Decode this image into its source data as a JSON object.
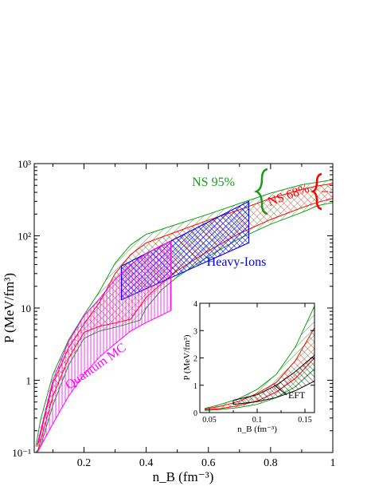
{
  "chart_data": [
    {
      "type": "area",
      "xlabel": "n_B (fm⁻³)",
      "ylabel": "P (MeV/fm³)",
      "x_scale": "linear",
      "y_scale": "log",
      "xlim": [
        0.04,
        1.0
      ],
      "ylim": [
        0.1,
        1000
      ],
      "x_ticks": [
        "0.2",
        "0.4",
        "0.6",
        "0.8",
        "1"
      ],
      "y_ticks": [
        "10⁻¹",
        "1",
        "10",
        "10²",
        "10³"
      ],
      "grid": false,
      "series": [
        {
          "name": "NS 95%",
          "color": "#1a9a1a",
          "hatch": "diagonal-up",
          "upper": [
            [
              0.045,
              0.12
            ],
            [
              0.06,
              0.28
            ],
            [
              0.1,
              1.2
            ],
            [
              0.15,
              3.6
            ],
            [
              0.2,
              8
            ],
            [
              0.25,
              17
            ],
            [
              0.3,
              42
            ],
            [
              0.35,
              75
            ],
            [
              0.4,
              105
            ],
            [
              0.5,
              145
            ],
            [
              0.6,
              200
            ],
            [
              0.7,
              280
            ],
            [
              0.8,
              390
            ],
            [
              0.9,
              510
            ],
            [
              0.95,
              550
            ],
            [
              1.0,
              600
            ]
          ],
          "lower": [
            [
              0.045,
              0.1
            ],
            [
              0.06,
              0.12
            ],
            [
              0.1,
              0.45
            ],
            [
              0.15,
              1.6
            ],
            [
              0.2,
              3.8
            ],
            [
              0.25,
              4.8
            ],
            [
              0.3,
              5.4
            ],
            [
              0.35,
              6.2
            ],
            [
              0.38,
              6.8
            ],
            [
              0.4,
              10
            ],
            [
              0.45,
              18
            ],
            [
              0.5,
              27
            ],
            [
              0.6,
              52
            ],
            [
              0.7,
              92
            ],
            [
              0.8,
              145
            ],
            [
              0.9,
              210
            ],
            [
              0.95,
              260
            ],
            [
              1.0,
              290
            ]
          ]
        },
        {
          "name": "NS 68%",
          "color": "#ff0000",
          "hatch": "diagonal-down",
          "upper": [
            [
              0.05,
              0.12
            ],
            [
              0.1,
              0.9
            ],
            [
              0.15,
              2.8
            ],
            [
              0.2,
              6
            ],
            [
              0.25,
              12
            ],
            [
              0.3,
              30
            ],
            [
              0.35,
              55
            ],
            [
              0.4,
              80
            ],
            [
              0.5,
              115
            ],
            [
              0.6,
              165
            ],
            [
              0.7,
              230
            ],
            [
              0.8,
              330
            ],
            [
              0.9,
              440
            ],
            [
              0.95,
              490
            ],
            [
              1.0,
              530
            ]
          ],
          "lower": [
            [
              0.05,
              0.1
            ],
            [
              0.1,
              0.6
            ],
            [
              0.15,
              2
            ],
            [
              0.2,
              4.6
            ],
            [
              0.25,
              5.6
            ],
            [
              0.3,
              6.2
            ],
            [
              0.35,
              7
            ],
            [
              0.4,
              14
            ],
            [
              0.45,
              22
            ],
            [
              0.5,
              33
            ],
            [
              0.6,
              62
            ],
            [
              0.7,
              108
            ],
            [
              0.8,
              168
            ],
            [
              0.9,
              245
            ],
            [
              0.95,
              290
            ],
            [
              1.0,
              330
            ]
          ]
        },
        {
          "name": "Heavy-Ions",
          "color": "#0000ee",
          "hatch": "crosshatch",
          "polygon": [
            [
              0.32,
              13
            ],
            [
              0.32,
              38
            ],
            [
              0.73,
              300
            ],
            [
              0.73,
              80
            ]
          ]
        },
        {
          "name": "Quantum MC",
          "color": "#ff00ff",
          "hatch": "vertical",
          "upper": [
            [
              0.05,
              0.13
            ],
            [
              0.1,
              1.0
            ],
            [
              0.15,
              3.4
            ],
            [
              0.2,
              7.8
            ],
            [
              0.25,
              13.5
            ],
            [
              0.3,
              25
            ],
            [
              0.35,
              40
            ],
            [
              0.4,
              57
            ],
            [
              0.45,
              74
            ],
            [
              0.48,
              85
            ]
          ],
          "lower": [
            [
              0.05,
              0.1
            ],
            [
              0.1,
              0.25
            ],
            [
              0.15,
              0.6
            ],
            [
              0.2,
              1.2
            ],
            [
              0.25,
              2.1
            ],
            [
              0.3,
              3.2
            ],
            [
              0.35,
              4.8
            ],
            [
              0.4,
              6.3
            ],
            [
              0.45,
              8
            ],
            [
              0.48,
              9.3
            ]
          ]
        }
      ],
      "annotations": [
        "NS 95%",
        "NS 68%",
        "Heavy-Ions",
        "Quantum MC"
      ]
    },
    {
      "type": "area",
      "inset": true,
      "xlabel": "n_B (fm⁻³)",
      "ylabel": "P (MeV/fm³)",
      "xlim": [
        0.04,
        0.16
      ],
      "ylim": [
        0,
        4
      ],
      "x_ticks": [
        "0.05",
        "0.1",
        "0.15"
      ],
      "y_ticks": [
        "0",
        "1",
        "2",
        "3",
        "4"
      ],
      "series": [
        {
          "name": "NS 95%",
          "color": "#1a9a1a",
          "upper": [
            [
              0.045,
              0.15
            ],
            [
              0.06,
              0.28
            ],
            [
              0.08,
              0.5
            ],
            [
              0.1,
              0.85
            ],
            [
              0.12,
              1.4
            ],
            [
              0.14,
              2.4
            ],
            [
              0.16,
              3.9
            ]
          ],
          "lower": [
            [
              0.045,
              0.08
            ],
            [
              0.06,
              0.11
            ],
            [
              0.08,
              0.18
            ],
            [
              0.1,
              0.3
            ],
            [
              0.12,
              0.55
            ],
            [
              0.14,
              0.95
            ],
            [
              0.16,
              1.6
            ]
          ]
        },
        {
          "name": "NS 68%",
          "color": "#ff0000",
          "upper": [
            [
              0.045,
              0.13
            ],
            [
              0.06,
              0.22
            ],
            [
              0.08,
              0.4
            ],
            [
              0.1,
              0.7
            ],
            [
              0.12,
              1.1
            ],
            [
              0.14,
              1.9
            ],
            [
              0.16,
              3.1
            ]
          ],
          "lower": [
            [
              0.045,
              0.1
            ],
            [
              0.06,
              0.14
            ],
            [
              0.08,
              0.25
            ],
            [
              0.1,
              0.42
            ],
            [
              0.12,
              0.75
            ],
            [
              0.14,
              1.25
            ],
            [
              0.16,
              2.0
            ]
          ]
        },
        {
          "name": "EFT",
          "color": "#000000",
          "upper": [
            [
              0.075,
              0.45
            ],
            [
              0.1,
              0.65
            ],
            [
              0.12,
              1.0
            ],
            [
              0.14,
              1.5
            ],
            [
              0.16,
              2.1
            ]
          ],
          "lower": [
            [
              0.075,
              0.3
            ],
            [
              0.1,
              0.4
            ],
            [
              0.12,
              0.55
            ],
            [
              0.14,
              0.8
            ],
            [
              0.16,
              1.15
            ]
          ]
        }
      ],
      "annotations": [
        "EFT"
      ]
    }
  ]
}
